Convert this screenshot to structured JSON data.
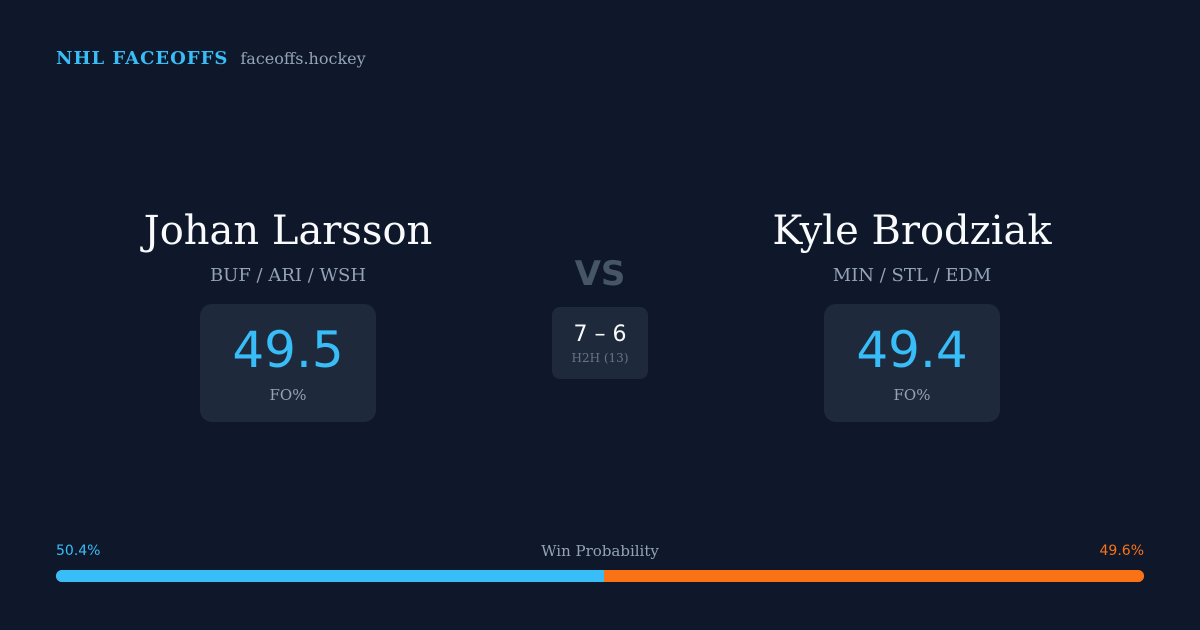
{
  "brand": {
    "title": "NHL FACEOFFS",
    "url": "faceoffs.hockey"
  },
  "players": [
    {
      "name": "Johan Larsson",
      "teams": "BUF / ARI / WSH",
      "fo_value": "49.5",
      "fo_label": "FO%"
    },
    {
      "name": "Kyle Brodziak",
      "teams": "MIN / STL / EDM",
      "fo_value": "49.4",
      "fo_label": "FO%"
    }
  ],
  "vs_label": "VS",
  "h2h": {
    "score": "7 – 6",
    "label": "H2H (13)"
  },
  "win_probability": {
    "title": "Win Probability",
    "left_label": "50.4%",
    "right_label": "49.6%",
    "left_value": 50.4,
    "right_value": 49.6
  },
  "colors": {
    "left": "#38bdf8",
    "right": "#f97316",
    "background": "#0f172a"
  }
}
